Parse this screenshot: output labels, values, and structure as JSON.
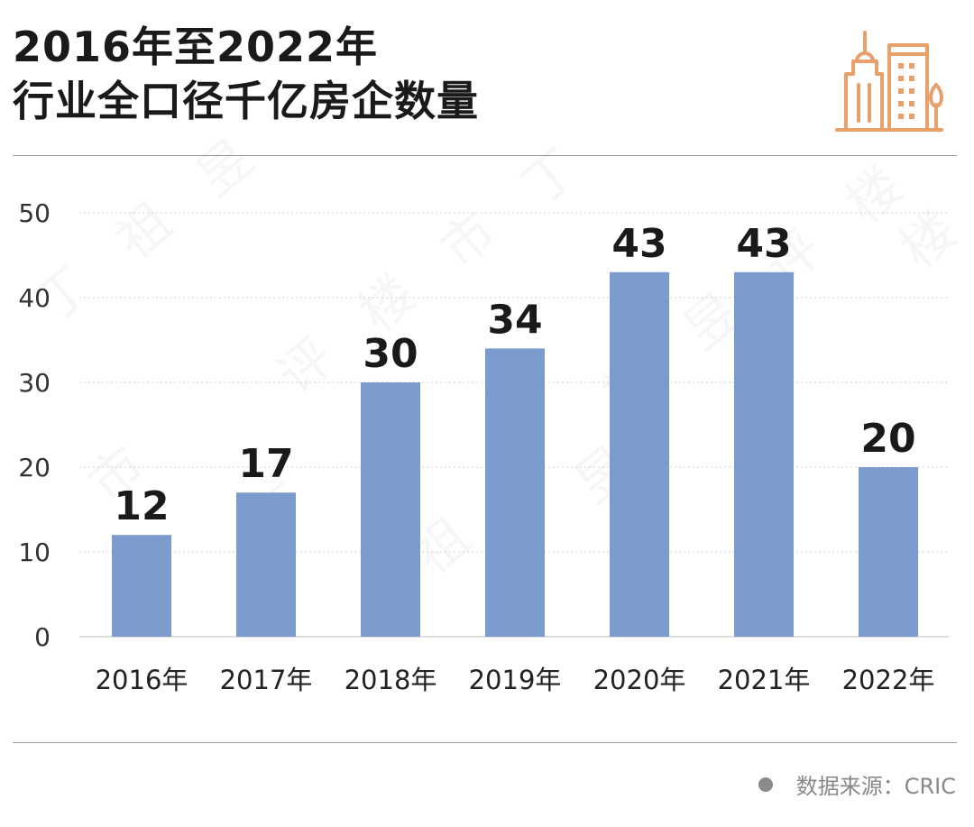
{
  "title": {
    "line1": "2016年至2022年",
    "line2": "行业全口径千亿房企数量"
  },
  "source": {
    "text": "数据来源：CRIC",
    "dot_color": "#8a8a8a"
  },
  "logo": {
    "icon": "buildings-icon",
    "color": "#e8a06a"
  },
  "watermark": "丁祖昱评楼市",
  "colors": {
    "bar": "#7b9bcc",
    "grid": "#cfcfcf",
    "text": "#1a1a1a",
    "rule": "#9a9a9a"
  },
  "chart_data": {
    "type": "bar",
    "title": "2016年至2022年 行业全口径千亿房企数量",
    "categories": [
      "2016年",
      "2017年",
      "2018年",
      "2019年",
      "2020年",
      "2021年",
      "2022年"
    ],
    "values": [
      12,
      17,
      30,
      34,
      43,
      43,
      20
    ],
    "data_labels": [
      "12",
      "17",
      "30",
      "34",
      "43",
      "43",
      "20"
    ],
    "ylim": [
      0,
      50
    ],
    "yticks": [
      0,
      10,
      20,
      30,
      40,
      50
    ],
    "ytick_labels": [
      "0",
      "10",
      "20",
      "30",
      "40",
      "50"
    ],
    "grid": true,
    "legend": "none"
  }
}
